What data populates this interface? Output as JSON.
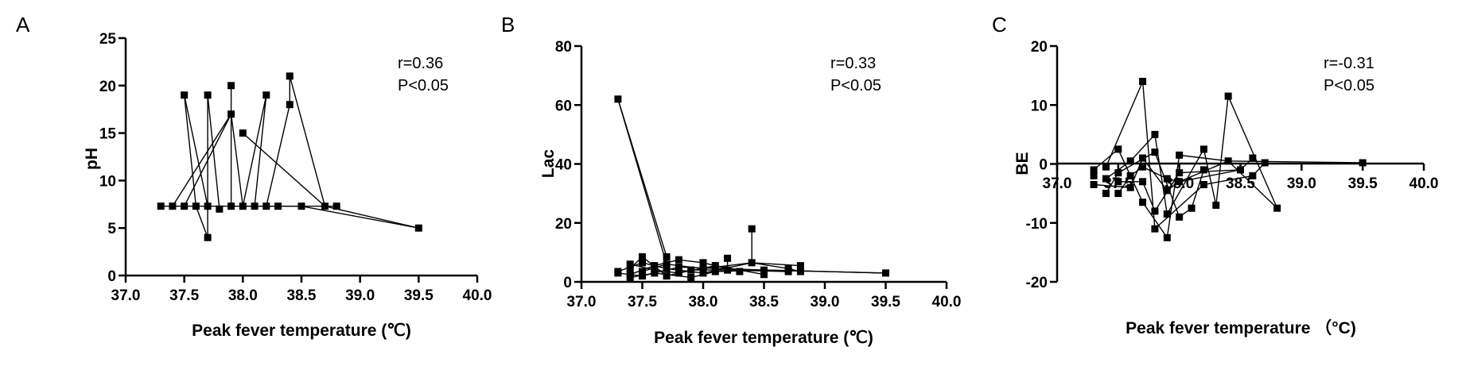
{
  "chart_data": [
    {
      "type": "scatter",
      "panel_letter": "A",
      "xlabel": "Peak fever temperature (℃)",
      "ylabel": "pH",
      "xlim": [
        37.0,
        40.0
      ],
      "ylim": [
        0,
        25
      ],
      "xticks": [
        "37.0",
        "37.5",
        "38.0",
        "38.5",
        "39.0",
        "39.5",
        "40.0"
      ],
      "yticks": [
        "0",
        "5",
        "10",
        "15",
        "20",
        "25"
      ],
      "annotations": [
        "r=0.36",
        "P<0.05"
      ],
      "marker": "square",
      "color": "#000000",
      "points": [
        {
          "x": 37.3,
          "y": 7.3
        },
        {
          "x": 37.4,
          "y": 7.3
        },
        {
          "x": 37.5,
          "y": 19.0
        },
        {
          "x": 37.5,
          "y": 7.3
        },
        {
          "x": 37.6,
          "y": 7.3
        },
        {
          "x": 37.7,
          "y": 19.0
        },
        {
          "x": 37.7,
          "y": 7.3
        },
        {
          "x": 37.7,
          "y": 4.0
        },
        {
          "x": 37.8,
          "y": 7.0
        },
        {
          "x": 37.9,
          "y": 20.0
        },
        {
          "x": 37.9,
          "y": 17.0
        },
        {
          "x": 37.9,
          "y": 7.3
        },
        {
          "x": 38.0,
          "y": 15.0
        },
        {
          "x": 38.0,
          "y": 7.3
        },
        {
          "x": 38.1,
          "y": 7.3
        },
        {
          "x": 38.2,
          "y": 19.0
        },
        {
          "x": 38.2,
          "y": 7.3
        },
        {
          "x": 38.3,
          "y": 7.3
        },
        {
          "x": 38.4,
          "y": 21.0
        },
        {
          "x": 38.4,
          "y": 18.0
        },
        {
          "x": 38.5,
          "y": 7.3
        },
        {
          "x": 38.7,
          "y": 7.3
        },
        {
          "x": 38.8,
          "y": 7.3
        },
        {
          "x": 39.5,
          "y": 5.0
        }
      ],
      "connections": [
        [
          [
            37.3,
            7.3
          ],
          [
            37.5,
            7.3
          ],
          [
            37.7,
            7.3
          ],
          [
            37.9,
            7.3
          ],
          [
            38.0,
            7.3
          ],
          [
            38.3,
            7.3
          ],
          [
            38.5,
            7.3
          ],
          [
            38.8,
            7.3
          ]
        ],
        [
          [
            37.5,
            19.0
          ],
          [
            37.7,
            7.3
          ]
        ],
        [
          [
            37.5,
            19.0
          ],
          [
            37.6,
            7.3
          ]
        ],
        [
          [
            37.7,
            19.0
          ],
          [
            37.7,
            4.0
          ],
          [
            37.6,
            7.3
          ]
        ],
        [
          [
            37.7,
            19.0
          ],
          [
            37.8,
            7.0
          ]
        ],
        [
          [
            37.9,
            20.0
          ],
          [
            37.9,
            7.3
          ]
        ],
        [
          [
            37.4,
            7.3
          ],
          [
            37.9,
            17.0
          ],
          [
            38.0,
            7.3
          ]
        ],
        [
          [
            37.5,
            7.3
          ],
          [
            37.9,
            17.0
          ]
        ],
        [
          [
            38.0,
            15.0
          ],
          [
            38.7,
            7.3
          ],
          [
            39.5,
            5.0
          ]
        ],
        [
          [
            38.0,
            7.3
          ],
          [
            38.2,
            19.0
          ],
          [
            38.1,
            7.3
          ]
        ],
        [
          [
            38.2,
            7.3
          ],
          [
            38.4,
            18.0
          ],
          [
            38.4,
            21.0
          ],
          [
            38.7,
            7.3
          ]
        ],
        [
          [
            38.0,
            7.3
          ],
          [
            38.5,
            7.3
          ],
          [
            39.5,
            5.0
          ]
        ]
      ]
    },
    {
      "type": "scatter",
      "panel_letter": "B",
      "xlabel": "Peak fever temperature (℃)",
      "ylabel": "Lac",
      "xlim": [
        37.0,
        40.0
      ],
      "ylim": [
        0,
        80
      ],
      "xticks": [
        "37.0",
        "37.5",
        "38.0",
        "38.5",
        "39.0",
        "39.5",
        "40.0"
      ],
      "yticks": [
        "0",
        "20",
        "40",
        "60",
        "80"
      ],
      "annotations": [
        "r=0.33",
        "P<0.05"
      ],
      "marker": "square",
      "color": "#000000",
      "points": [
        {
          "x": 37.3,
          "y": 62.0
        },
        {
          "x": 37.3,
          "y": 3.5
        },
        {
          "x": 37.3,
          "y": 3.0
        },
        {
          "x": 37.4,
          "y": 6.0
        },
        {
          "x": 37.4,
          "y": 4.5
        },
        {
          "x": 37.4,
          "y": 2.5
        },
        {
          "x": 37.4,
          "y": 1.5
        },
        {
          "x": 37.5,
          "y": 8.5
        },
        {
          "x": 37.5,
          "y": 6.5
        },
        {
          "x": 37.5,
          "y": 3.5
        },
        {
          "x": 37.5,
          "y": 2.0
        },
        {
          "x": 37.6,
          "y": 5.5
        },
        {
          "x": 37.6,
          "y": 4.0
        },
        {
          "x": 37.6,
          "y": 3.0
        },
        {
          "x": 37.7,
          "y": 8.5
        },
        {
          "x": 37.7,
          "y": 6.0
        },
        {
          "x": 37.7,
          "y": 4.5
        },
        {
          "x": 37.7,
          "y": 2.0
        },
        {
          "x": 37.8,
          "y": 7.5
        },
        {
          "x": 37.8,
          "y": 5.0
        },
        {
          "x": 37.8,
          "y": 3.0
        },
        {
          "x": 37.9,
          "y": 4.0
        },
        {
          "x": 37.9,
          "y": 1.5
        },
        {
          "x": 38.0,
          "y": 6.5
        },
        {
          "x": 38.0,
          "y": 4.5
        },
        {
          "x": 38.0,
          "y": 3.0
        },
        {
          "x": 38.1,
          "y": 3.5
        },
        {
          "x": 38.1,
          "y": 5.5
        },
        {
          "x": 38.2,
          "y": 8.0
        },
        {
          "x": 38.2,
          "y": 4.0
        },
        {
          "x": 38.3,
          "y": 3.5
        },
        {
          "x": 38.4,
          "y": 18.0
        },
        {
          "x": 38.4,
          "y": 6.5
        },
        {
          "x": 38.5,
          "y": 2.5
        },
        {
          "x": 38.5,
          "y": 4.0
        },
        {
          "x": 38.7,
          "y": 4.5
        },
        {
          "x": 38.7,
          "y": 3.5
        },
        {
          "x": 38.8,
          "y": 5.5
        },
        {
          "x": 38.8,
          "y": 3.5
        },
        {
          "x": 39.5,
          "y": 3.0
        }
      ],
      "connections": [
        [
          [
            37.3,
            62.0
          ],
          [
            37.7,
            6.0
          ]
        ],
        [
          [
            37.3,
            62.0
          ],
          [
            37.7,
            8.5
          ]
        ],
        [
          [
            37.3,
            3.5
          ],
          [
            37.5,
            6.5
          ],
          [
            37.7,
            4.5
          ],
          [
            38.0,
            3.0
          ],
          [
            38.4,
            6.5
          ],
          [
            38.8,
            5.5
          ]
        ],
        [
          [
            37.4,
            6.0
          ],
          [
            37.6,
            4.0
          ],
          [
            37.8,
            3.0
          ],
          [
            38.1,
            5.5
          ],
          [
            38.5,
            2.5
          ]
        ],
        [
          [
            37.4,
            4.5
          ],
          [
            37.5,
            8.5
          ],
          [
            37.7,
            2.0
          ],
          [
            37.9,
            4.0
          ],
          [
            38.2,
            4.0
          ],
          [
            38.7,
            3.5
          ]
        ],
        [
          [
            37.4,
            2.5
          ],
          [
            37.6,
            5.5
          ],
          [
            37.8,
            7.5
          ],
          [
            38.0,
            6.5
          ],
          [
            38.3,
            3.5
          ]
        ],
        [
          [
            37.4,
            1.5
          ],
          [
            37.6,
            3.0
          ],
          [
            37.9,
            1.5
          ],
          [
            38.1,
            3.5
          ],
          [
            38.5,
            4.0
          ],
          [
            39.5,
            3.0
          ]
        ],
        [
          [
            37.5,
            3.5
          ],
          [
            37.7,
            6.0
          ],
          [
            38.0,
            4.5
          ],
          [
            38.4,
            6.5
          ]
        ],
        [
          [
            38.2,
            4.0
          ],
          [
            38.2,
            8.0
          ]
        ],
        [
          [
            38.4,
            18.0
          ],
          [
            38.4,
            6.5
          ],
          [
            38.7,
            4.5
          ],
          [
            38.8,
            3.5
          ]
        ],
        [
          [
            37.3,
            3.0
          ],
          [
            37.5,
            2.0
          ],
          [
            37.8,
            5.0
          ],
          [
            38.5,
            4.0
          ],
          [
            39.5,
            3.0
          ]
        ]
      ]
    },
    {
      "type": "scatter",
      "panel_letter": "C",
      "xlabel": "Peak fever temperature （°C)",
      "ylabel": "BE",
      "xlim": [
        37.0,
        40.0
      ],
      "ylim": [
        -20,
        20
      ],
      "xticks": [
        "37.0",
        "37.5",
        "38.0",
        "38.5",
        "39.0",
        "39.5",
        "40.0"
      ],
      "yticks": [
        "-20",
        "-10",
        "0",
        "10",
        "20"
      ],
      "annotations": [
        "r=-0.31",
        "P<0.05"
      ],
      "marker": "square",
      "color": "#000000",
      "points": [
        {
          "x": 37.3,
          "y": -1.0
        },
        {
          "x": 37.3,
          "y": -2.0
        },
        {
          "x": 37.3,
          "y": -3.5
        },
        {
          "x": 37.4,
          "y": -0.5
        },
        {
          "x": 37.4,
          "y": -2.5
        },
        {
          "x": 37.4,
          "y": -5.0
        },
        {
          "x": 37.5,
          "y": 2.5
        },
        {
          "x": 37.5,
          "y": -1.5
        },
        {
          "x": 37.5,
          "y": -3.0
        },
        {
          "x": 37.5,
          "y": -5.0
        },
        {
          "x": 37.6,
          "y": 0.5
        },
        {
          "x": 37.6,
          "y": -2.0
        },
        {
          "x": 37.6,
          "y": -4.0
        },
        {
          "x": 37.7,
          "y": 14.0
        },
        {
          "x": 37.7,
          "y": 1.0
        },
        {
          "x": 37.7,
          "y": -0.5
        },
        {
          "x": 37.7,
          "y": -3.0
        },
        {
          "x": 37.7,
          "y": -6.5
        },
        {
          "x": 37.8,
          "y": 5.0
        },
        {
          "x": 37.8,
          "y": 2.0
        },
        {
          "x": 37.8,
          "y": -8.0
        },
        {
          "x": 37.8,
          "y": -11.0
        },
        {
          "x": 37.9,
          "y": -2.5
        },
        {
          "x": 37.9,
          "y": -4.5
        },
        {
          "x": 37.9,
          "y": -8.5
        },
        {
          "x": 37.9,
          "y": -12.5
        },
        {
          "x": 38.0,
          "y": 1.5
        },
        {
          "x": 38.0,
          "y": -1.5
        },
        {
          "x": 38.0,
          "y": -3.0
        },
        {
          "x": 38.0,
          "y": -9.0
        },
        {
          "x": 38.1,
          "y": -7.5
        },
        {
          "x": 38.2,
          "y": 2.5
        },
        {
          "x": 38.2,
          "y": -1.0
        },
        {
          "x": 38.2,
          "y": -3.5
        },
        {
          "x": 38.3,
          "y": -7.0
        },
        {
          "x": 38.4,
          "y": 11.5
        },
        {
          "x": 38.4,
          "y": 0.5
        },
        {
          "x": 38.5,
          "y": -1.0
        },
        {
          "x": 38.6,
          "y": -2.0
        },
        {
          "x": 38.6,
          "y": 1.0
        },
        {
          "x": 38.7,
          "y": 0.2
        },
        {
          "x": 38.8,
          "y": -7.5
        },
        {
          "x": 39.5,
          "y": 0.2
        }
      ],
      "connections": [
        [
          [
            37.3,
            -1.0
          ],
          [
            37.5,
            2.5
          ],
          [
            37.7,
            -6.5
          ],
          [
            37.9,
            -12.5
          ],
          [
            38.0,
            1.5
          ],
          [
            38.4,
            0.5
          ],
          [
            39.5,
            0.2
          ]
        ],
        [
          [
            37.4,
            -0.5
          ],
          [
            37.7,
            14.0
          ],
          [
            37.8,
            -11.0
          ],
          [
            38.2,
            -3.5
          ],
          [
            38.6,
            -2.0
          ],
          [
            38.7,
            0.2
          ]
        ],
        [
          [
            37.4,
            -2.5
          ],
          [
            37.6,
            0.5
          ],
          [
            37.8,
            5.0
          ],
          [
            37.9,
            -8.5
          ],
          [
            38.2,
            2.5
          ],
          [
            38.3,
            -7.0
          ],
          [
            38.4,
            11.5
          ],
          [
            38.8,
            -7.5
          ]
        ],
        [
          [
            37.3,
            -3.5
          ],
          [
            37.6,
            -4.0
          ],
          [
            37.7,
            1.0
          ],
          [
            37.9,
            -4.5
          ],
          [
            38.0,
            -3.0
          ],
          [
            38.5,
            -1.0
          ],
          [
            38.6,
            1.0
          ]
        ],
        [
          [
            37.4,
            -5.0
          ],
          [
            37.5,
            -1.5
          ],
          [
            37.8,
            2.0
          ],
          [
            38.0,
            -9.0
          ],
          [
            38.1,
            -7.5
          ],
          [
            38.2,
            -1.0
          ]
        ],
        [
          [
            37.5,
            -3.0
          ],
          [
            37.7,
            -3.0
          ],
          [
            37.8,
            -8.0
          ],
          [
            38.0,
            -1.5
          ],
          [
            38.5,
            -1.0
          ]
        ],
        [
          [
            37.5,
            -5.0
          ],
          [
            37.6,
            -2.0
          ],
          [
            37.7,
            -0.5
          ],
          [
            37.9,
            -2.5
          ],
          [
            38.0,
            -3.0
          ],
          [
            38.4,
            0.5
          ],
          [
            38.8,
            -7.5
          ]
        ]
      ]
    }
  ]
}
